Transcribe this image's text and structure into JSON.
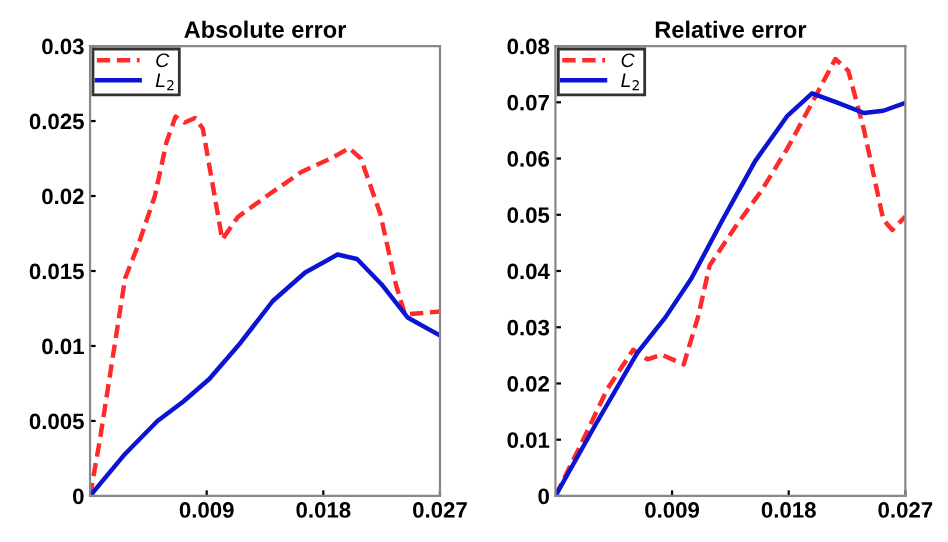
{
  "chart_data": [
    {
      "type": "line",
      "title": "Absolute error",
      "xlim": [
        0,
        0.027
      ],
      "xticks": [
        0.009,
        0.018,
        0.027
      ],
      "ylim": [
        0,
        0.03
      ],
      "yticks": [
        0,
        0.005,
        0.01,
        0.015,
        0.02,
        0.025,
        0.03
      ],
      "legend": "top left",
      "grid": false,
      "series": [
        {
          "name": "C",
          "color": "#ff2a2a",
          "line_style": "dashed",
          "x": [
            0,
            0.00075,
            0.0027,
            0.0037,
            0.005,
            0.0059,
            0.0066,
            0.0073,
            0.0081,
            0.0087,
            0.0102,
            0.0114,
            0.0138,
            0.0163,
            0.0188,
            0.02,
            0.0209,
            0.0224,
            0.0236,
            0.0243,
            0.027
          ],
          "values": [
            0,
            0.0037,
            0.0145,
            0.0167,
            0.02,
            0.0236,
            0.0253,
            0.0249,
            0.0252,
            0.0245,
            0.0171,
            0.0186,
            0.0201,
            0.0216,
            0.0226,
            0.0232,
            0.0225,
            0.0188,
            0.0141,
            0.0121,
            0.0123
          ]
        },
        {
          "name": "L$_{2}$",
          "color": "#0a14d2",
          "line_style": "solid",
          "x": [
            0,
            0.0027,
            0.0052,
            0.0072,
            0.0092,
            0.0116,
            0.0141,
            0.0166,
            0.0191,
            0.0206,
            0.0225,
            0.0245,
            0.027
          ],
          "values": [
            0,
            0.0028,
            0.005,
            0.0063,
            0.0078,
            0.0102,
            0.013,
            0.0149,
            0.0161,
            0.0158,
            0.0141,
            0.0119,
            0.0107
          ]
        }
      ]
    },
    {
      "type": "line",
      "title": "Relative error",
      "xlim": [
        0,
        0.027
      ],
      "xticks": [
        0.009,
        0.018,
        0.027
      ],
      "ylim": [
        0,
        0.08
      ],
      "yticks": [
        0,
        0.01,
        0.02,
        0.03,
        0.04,
        0.05,
        0.06,
        0.07,
        0.08
      ],
      "legend": "top left",
      "grid": false,
      "series": [
        {
          "name": "C",
          "color": "#ff2a2a",
          "line_style": "dashed",
          "x": [
            0,
            0.0021,
            0.004,
            0.006,
            0.0071,
            0.0082,
            0.0099,
            0.011,
            0.0119,
            0.0139,
            0.0159,
            0.0179,
            0.0198,
            0.0216,
            0.0226,
            0.0238,
            0.0253,
            0.026,
            0.027
          ],
          "values": [
            0,
            0.0098,
            0.019,
            0.026,
            0.0243,
            0.0251,
            0.0234,
            0.0318,
            0.041,
            0.0479,
            0.0543,
            0.0618,
            0.0699,
            0.0777,
            0.0756,
            0.0652,
            0.0491,
            0.0473,
            0.0497
          ]
        },
        {
          "name": "L$_{2}$",
          "color": "#0a14d2",
          "line_style": "solid",
          "x": [
            0,
            0.0031,
            0.0063,
            0.0085,
            0.0105,
            0.0129,
            0.0154,
            0.0179,
            0.0198,
            0.0218,
            0.0238,
            0.0253,
            0.027
          ],
          "values": [
            0,
            0.0127,
            0.0254,
            0.0318,
            0.0387,
            0.0491,
            0.0595,
            0.0676,
            0.0716,
            0.0699,
            0.0681,
            0.0685,
            0.0699
          ]
        }
      ]
    }
  ]
}
